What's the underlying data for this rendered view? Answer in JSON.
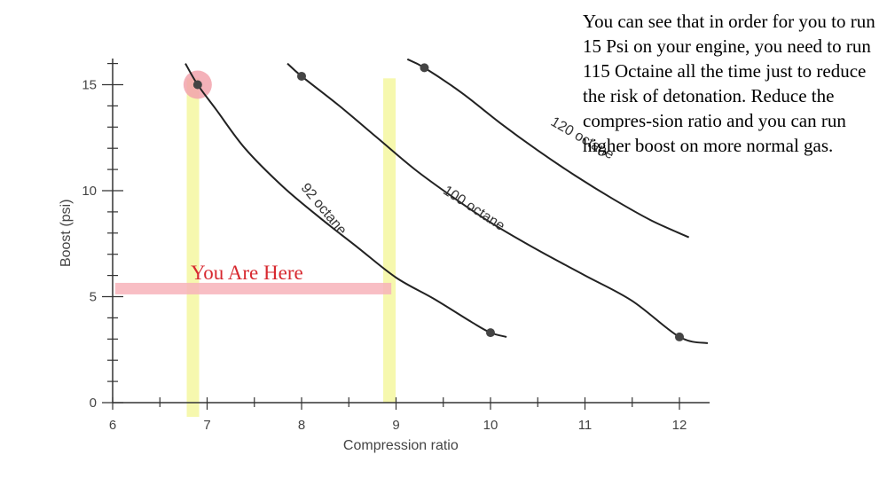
{
  "note": {
    "text": "You can see that in order for you to run 15 Psi on your engine, you need to run 115 Octaine all the time just to reduce the risk of detonation.  Reduce the compres-sion ratio and you can run higher boost on more normal gas."
  },
  "chart_data": {
    "type": "line",
    "xlabel": "Compression ratio",
    "ylabel": "Boost (psi)",
    "xlim": [
      6,
      12.3
    ],
    "ylim": [
      0,
      16
    ],
    "xticks": [
      6,
      7,
      8,
      9,
      10,
      11,
      12
    ],
    "yticks": [
      0,
      5,
      10,
      15
    ],
    "series": [
      {
        "name": "92 octane",
        "x": [
          6.77,
          6.9,
          7.1,
          7.4,
          7.8,
          8.2,
          8.6,
          9.0,
          9.4,
          9.8,
          10.0,
          10.17
        ],
        "y": [
          16.0,
          15.0,
          13.8,
          12.0,
          10.2,
          8.7,
          7.3,
          5.9,
          4.9,
          3.8,
          3.3,
          3.1
        ],
        "markers": [
          [
            6.9,
            15.0
          ],
          [
            10.0,
            3.3
          ]
        ]
      },
      {
        "name": "100 octane",
        "x": [
          7.85,
          8.0,
          8.4,
          8.8,
          9.2,
          9.6,
          10.0,
          10.5,
          11.0,
          11.5,
          12.0,
          12.3
        ],
        "y": [
          16.0,
          15.4,
          14.0,
          12.5,
          11.0,
          9.7,
          8.5,
          7.2,
          6.0,
          4.8,
          3.1,
          2.8
        ],
        "markers": [
          [
            8.0,
            15.4
          ],
          [
            12.0,
            3.1
          ]
        ]
      },
      {
        "name": "120 octane",
        "x": [
          9.12,
          9.3,
          9.7,
          10.1,
          10.5,
          10.9,
          11.3,
          11.7,
          12.1
        ],
        "y": [
          16.2,
          15.8,
          14.6,
          13.2,
          11.9,
          10.7,
          9.6,
          8.6,
          7.8
        ],
        "markers": [
          [
            9.3,
            15.8
          ]
        ]
      }
    ],
    "highlights": {
      "vertical_bands_x": [
        6.85,
        8.93
      ],
      "horizontal_band_y": 5.4,
      "circle_at": [
        6.9,
        15.0
      ],
      "here_label": "You Are Here"
    }
  }
}
